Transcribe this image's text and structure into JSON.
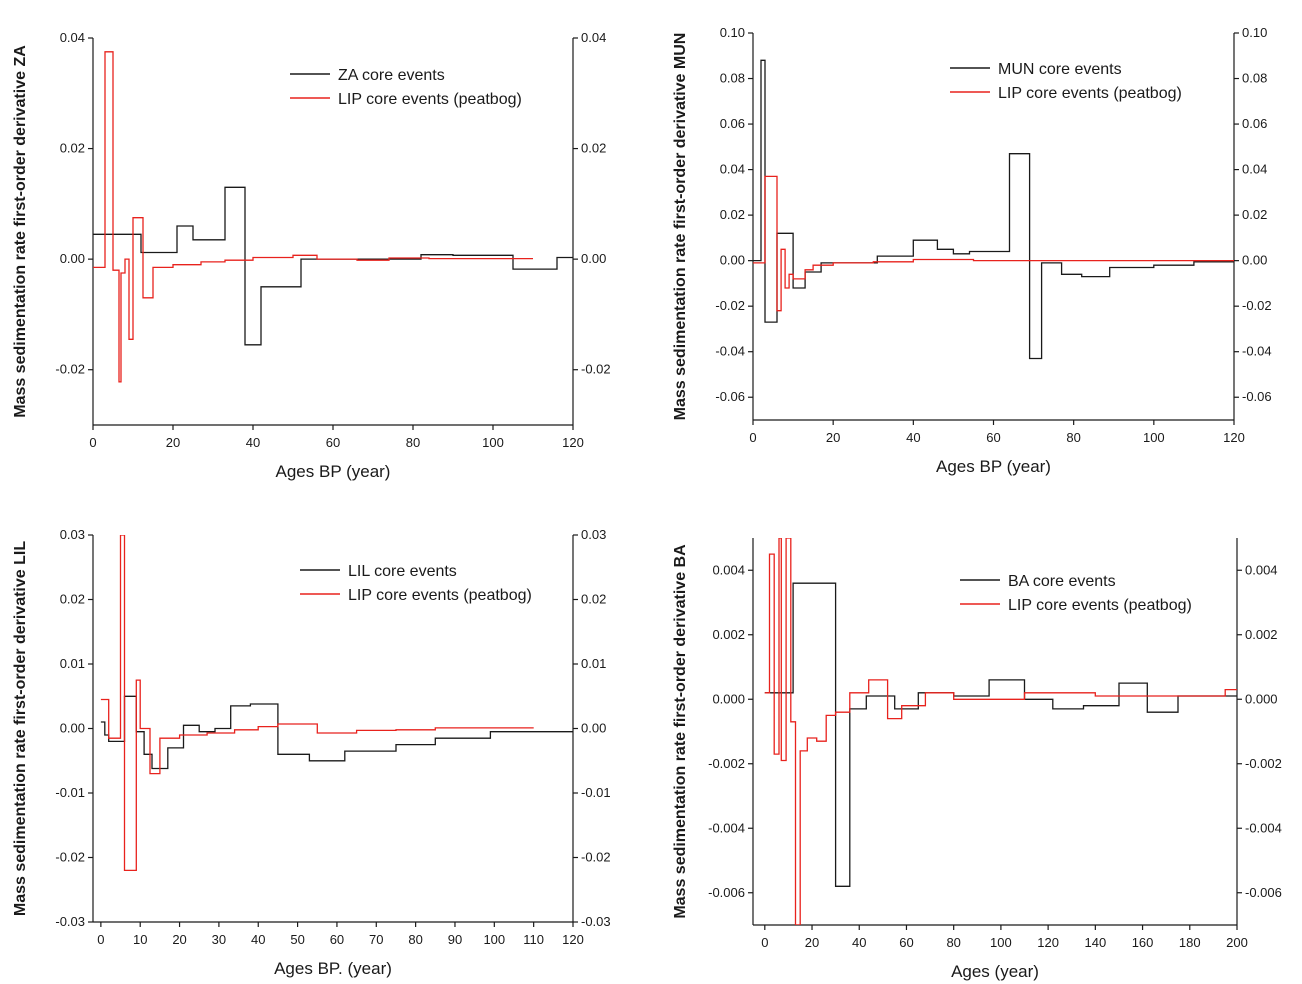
{
  "chart_data": [
    {
      "type": "line",
      "panel": "ZA",
      "ylabel": "Mass sedimentation rate first-order  derivative  ZA",
      "xlabel": "Ages BP (year)",
      "xlim": [
        0,
        120
      ],
      "ylim": [
        -0.03,
        0.04
      ],
      "xticks": [
        0,
        20,
        40,
        60,
        80,
        100,
        120
      ],
      "xtick_labels": [
        "0",
        "20",
        "40",
        "60",
        "80",
        "100",
        "120"
      ],
      "yticks": [
        -0.02,
        0.0,
        0.02,
        0.04
      ],
      "ytick_labels": [
        "-0.02",
        "0.00",
        "0.02",
        "0.04"
      ],
      "legend_position": "top-right",
      "series": [
        {
          "name": "ZA core events",
          "color": "#1a1a1a",
          "x": [
            0,
            12,
            12,
            21,
            21,
            25,
            25,
            33,
            33,
            38,
            38,
            42,
            42,
            52,
            52,
            60,
            60,
            82,
            82,
            90,
            90,
            105,
            105,
            116,
            116,
            120
          ],
          "y": [
            0.0045,
            0.0045,
            0.0012,
            0.0012,
            0.006,
            0.006,
            0.0035,
            0.0035,
            0.013,
            0.013,
            -0.0155,
            -0.0155,
            -0.005,
            -0.005,
            0.0,
            0.0,
            0.0,
            0.0,
            0.0008,
            0.0008,
            0.0007,
            0.0007,
            -0.0018,
            -0.0018,
            0.0003,
            0.0003
          ]
        },
        {
          "name": "LIP core events (peatbog)",
          "color": "#e8221d",
          "x": [
            0,
            3,
            3,
            5,
            5,
            6.5,
            6.5,
            7,
            7,
            8,
            8,
            9,
            9,
            10,
            10,
            12.5,
            12.5,
            15,
            15,
            20,
            20,
            27,
            27,
            33,
            33,
            40,
            40,
            50,
            50,
            56,
            56,
            66,
            66,
            74,
            74,
            84,
            84,
            110
          ],
          "y": [
            -0.0015,
            -0.0015,
            0.0375,
            0.0375,
            -0.002,
            -0.002,
            -0.0222,
            -0.0222,
            -0.0025,
            -0.0025,
            0.0,
            0.0,
            -0.0145,
            -0.0145,
            0.0075,
            0.0075,
            -0.007,
            -0.007,
            -0.0015,
            -0.0015,
            -0.001,
            -0.001,
            -0.0005,
            -0.0005,
            -0.0002,
            -0.0002,
            0.0003,
            0.0003,
            0.0007,
            0.0007,
            0.0,
            0.0,
            -0.0002,
            -0.0002,
            0.0002,
            0.0002,
            0.0001,
            0.0001
          ]
        }
      ]
    },
    {
      "type": "line",
      "panel": "MUN",
      "ylabel": "Mass sedimentation rate first-order  derivative  MUN",
      "xlabel": "Ages BP (year)",
      "xlim": [
        0,
        120
      ],
      "ylim": [
        -0.07,
        0.1
      ],
      "xticks": [
        0,
        20,
        40,
        60,
        80,
        100,
        120
      ],
      "xtick_labels": [
        "0",
        "20",
        "40",
        "60",
        "80",
        "100",
        "120"
      ],
      "yticks": [
        -0.06,
        -0.04,
        -0.02,
        0.0,
        0.02,
        0.04,
        0.06,
        0.08,
        0.1
      ],
      "ytick_labels": [
        "-0.06",
        "-0.04",
        "-0.02",
        "0.00",
        "0.02",
        "0.04",
        "0.06",
        "0.08",
        "0.10"
      ],
      "legend_position": "top-right",
      "series": [
        {
          "name": "MUN core events",
          "color": "#1a1a1a",
          "x": [
            0,
            2,
            2,
            3,
            3,
            6,
            6,
            10,
            10,
            13,
            13,
            17,
            17,
            31,
            31,
            40,
            40,
            46,
            46,
            50,
            50,
            54,
            54,
            59,
            59,
            64,
            64,
            69,
            69,
            72,
            72,
            77,
            77,
            82,
            82,
            89,
            89,
            100,
            100,
            110,
            110,
            120
          ],
          "y": [
            0.0,
            0.0,
            0.088,
            0.088,
            -0.027,
            -0.027,
            0.012,
            0.012,
            -0.012,
            -0.012,
            -0.005,
            -0.005,
            -0.001,
            -0.001,
            0.002,
            0.002,
            0.009,
            0.009,
            0.005,
            0.005,
            0.003,
            0.003,
            0.004,
            0.004,
            0.004,
            0.004,
            0.047,
            0.047,
            -0.043,
            -0.043,
            -0.001,
            -0.001,
            -0.006,
            -0.006,
            -0.007,
            -0.007,
            -0.003,
            -0.003,
            -0.002,
            -0.002,
            -0.0005,
            -0.0005
          ]
        },
        {
          "name": "LIP core events (peatbog)",
          "color": "#e8221d",
          "x": [
            0,
            3,
            3,
            6,
            6,
            7,
            7,
            8,
            8,
            9,
            9,
            10,
            10,
            13,
            13,
            15,
            15,
            20,
            20,
            30,
            30,
            40,
            40,
            55,
            55,
            75,
            75,
            120
          ],
          "y": [
            -0.001,
            -0.001,
            0.037,
            0.037,
            -0.022,
            -0.022,
            0.005,
            0.005,
            -0.012,
            -0.012,
            -0.006,
            -0.006,
            -0.008,
            -0.008,
            -0.004,
            -0.004,
            -0.002,
            -0.002,
            -0.001,
            -0.001,
            -0.0005,
            -0.0005,
            0.0005,
            0.0005,
            0.0,
            0.0,
            0.0,
            0.0
          ]
        }
      ]
    },
    {
      "type": "line",
      "panel": "LIL",
      "ylabel": "Mass sedimentation rate first-order  derivative  LIL",
      "xlabel": "Ages BP. (year)",
      "xlim": [
        -2,
        120
      ],
      "ylim": [
        -0.03,
        0.03
      ],
      "xticks": [
        0,
        10,
        20,
        30,
        40,
        50,
        60,
        70,
        80,
        90,
        100,
        110,
        120
      ],
      "xtick_labels": [
        "0",
        "10",
        "20",
        "30",
        "40",
        "50",
        "60",
        "70",
        "80",
        "90",
        "100",
        "110",
        "120"
      ],
      "yticks": [
        -0.03,
        -0.02,
        -0.01,
        0.0,
        0.01,
        0.02,
        0.03
      ],
      "ytick_labels": [
        "-0.03",
        "-0.02",
        "-0.01",
        "0.00",
        "0.01",
        "0.02",
        "0.03"
      ],
      "legend_position": "top-right",
      "series": [
        {
          "name": "LIL core events",
          "color": "#1a1a1a",
          "x": [
            0,
            1,
            1,
            2,
            2,
            6,
            6,
            9,
            9,
            11,
            11,
            13,
            13,
            17,
            17,
            21,
            21,
            25,
            25,
            29,
            29,
            33,
            33,
            38,
            38,
            45,
            45,
            53,
            53,
            62,
            62,
            75,
            75,
            85,
            85,
            99,
            99,
            120
          ],
          "y": [
            0.001,
            0.001,
            -0.001,
            -0.001,
            -0.002,
            -0.002,
            0.005,
            0.005,
            -0.0005,
            -0.0005,
            -0.004,
            -0.004,
            -0.0062,
            -0.0062,
            -0.003,
            -0.003,
            0.0005,
            0.0005,
            -0.0005,
            -0.0005,
            0.0,
            0.0,
            0.0035,
            0.0035,
            0.0038,
            0.0038,
            -0.004,
            -0.004,
            -0.005,
            -0.005,
            -0.0035,
            -0.0035,
            -0.0025,
            -0.0025,
            -0.0015,
            -0.0015,
            -0.0005,
            -0.0005
          ]
        },
        {
          "name": "LIP core events (peatbog)",
          "color": "#e8221d",
          "x": [
            0,
            2,
            2,
            5,
            5,
            6,
            6,
            9,
            9,
            10,
            10,
            12.5,
            12.5,
            15,
            15,
            20,
            20,
            27,
            27,
            34,
            34,
            40,
            40,
            45,
            45,
            55,
            55,
            65,
            65,
            75,
            75,
            85,
            85,
            110
          ],
          "y": [
            0.0045,
            0.0045,
            -0.0015,
            -0.0015,
            0.03,
            0.03,
            -0.022,
            -0.022,
            0.0075,
            0.0075,
            0.0,
            0.0,
            -0.007,
            -0.007,
            -0.0015,
            -0.0015,
            -0.001,
            -0.001,
            -0.0007,
            -0.0007,
            -0.0002,
            -0.0002,
            0.0003,
            0.0003,
            0.0007,
            0.0007,
            -0.0007,
            -0.0007,
            -0.0003,
            -0.0003,
            -0.0002,
            -0.0002,
            0.0001,
            0.0001
          ]
        }
      ]
    },
    {
      "type": "line",
      "panel": "BA",
      "ylabel": "Mass sedimentation rate first-order  derivative  BA",
      "xlabel": "Ages (year)",
      "xlim": [
        -5,
        200
      ],
      "ylim": [
        -0.007,
        0.005
      ],
      "xticks": [
        0,
        20,
        40,
        60,
        80,
        100,
        120,
        140,
        160,
        180,
        200
      ],
      "xtick_labels": [
        "0",
        "20",
        "40",
        "60",
        "80",
        "100",
        "120",
        "140",
        "160",
        "180",
        "200"
      ],
      "yticks": [
        -0.006,
        -0.004,
        -0.002,
        0.0,
        0.002,
        0.004
      ],
      "ytick_labels": [
        "-0.006",
        "-0.004",
        "-0.002",
        "0.000",
        "0.002",
        "0.004"
      ],
      "legend_position": "top-right",
      "series": [
        {
          "name": "BA core events",
          "color": "#1a1a1a",
          "x": [
            0,
            7,
            7,
            12,
            12,
            18,
            18,
            30,
            30,
            36,
            36,
            43,
            43,
            55,
            55,
            65,
            65,
            80,
            80,
            95,
            95,
            110,
            110,
            122,
            122,
            135,
            135,
            150,
            150,
            162,
            162,
            175,
            175,
            200
          ],
          "y": [
            0.0002,
            0.0002,
            0.0002,
            0.0002,
            0.0036,
            0.0036,
            0.0036,
            0.0036,
            -0.0058,
            -0.0058,
            -0.0003,
            -0.0003,
            0.0001,
            0.0001,
            -0.0003,
            -0.0003,
            0.0002,
            0.0002,
            0.0001,
            0.0001,
            0.0006,
            0.0006,
            0.0,
            0.0,
            -0.0003,
            -0.0003,
            -0.0002,
            -0.0002,
            0.0005,
            0.0005,
            -0.0004,
            -0.0004,
            0.0001,
            0.0001
          ]
        },
        {
          "name": "LIP core events (peatbog)",
          "color": "#e8221d",
          "x": [
            0,
            2,
            2,
            4,
            4,
            6,
            6,
            7,
            7,
            9,
            9,
            11,
            11,
            13,
            13,
            15,
            15,
            18,
            18,
            22,
            22,
            26,
            26,
            30,
            30,
            36,
            36,
            44,
            44,
            52,
            52,
            58,
            58,
            68,
            68,
            80,
            80,
            110,
            110,
            140,
            140,
            170,
            170,
            195,
            195,
            200
          ],
          "y": [
            0.0002,
            0.0002,
            0.0045,
            0.0045,
            -0.0017,
            -0.0017,
            0.005,
            0.005,
            -0.0019,
            -0.0019,
            0.005,
            0.005,
            -0.0007,
            -0.0007,
            -0.007,
            -0.007,
            -0.0016,
            -0.0016,
            -0.0012,
            -0.0012,
            -0.0013,
            -0.0013,
            -0.0005,
            -0.0005,
            -0.0004,
            -0.0004,
            0.0002,
            0.0002,
            0.0006,
            0.0006,
            -0.0006,
            -0.0006,
            -0.0002,
            -0.0002,
            0.0002,
            0.0002,
            0.0,
            0.0,
            0.0002,
            0.0002,
            0.0001,
            0.0001,
            0.0001,
            0.0001,
            0.0003,
            0.0003
          ]
        }
      ]
    }
  ]
}
